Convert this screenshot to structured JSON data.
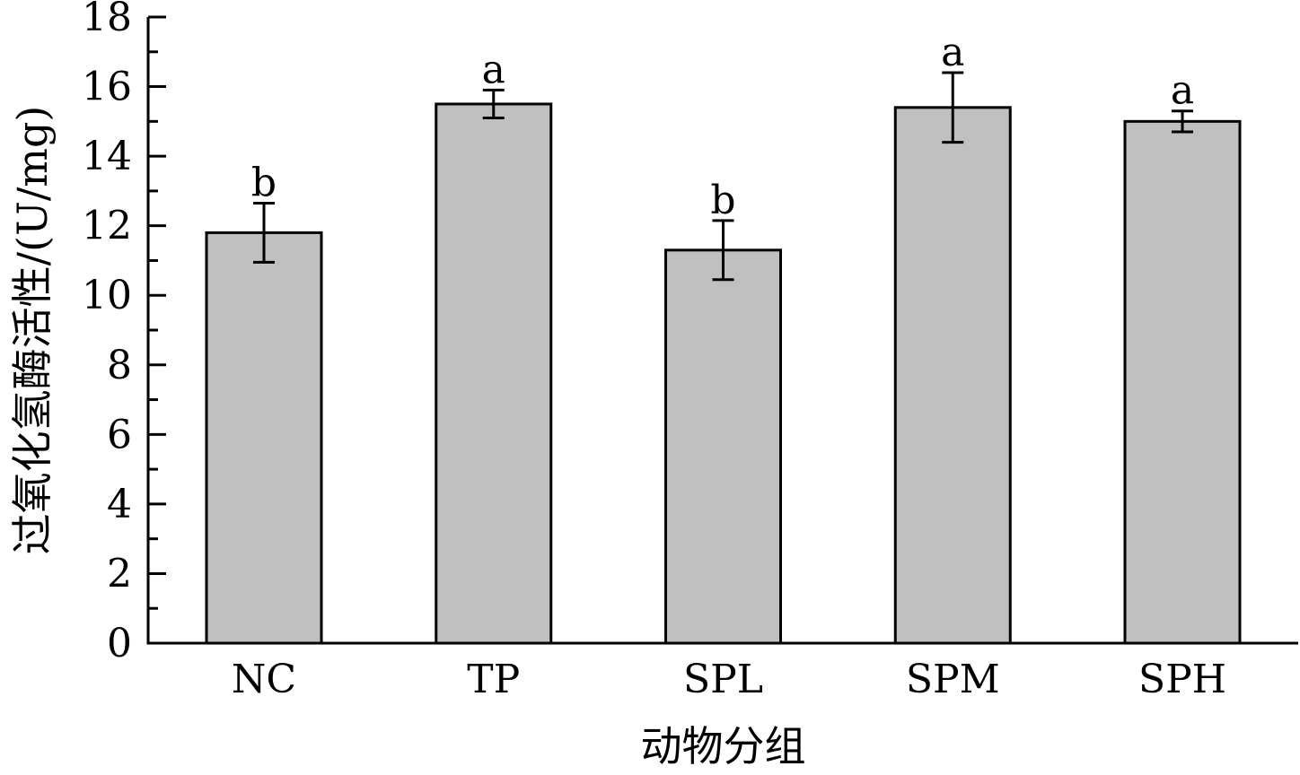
{
  "chart_data": {
    "type": "bar",
    "title": "",
    "xlabel": "动物分组",
    "ylabel": "过氧化氢酶活性/(U/mg)",
    "ylim": [
      0,
      18
    ],
    "yticks": [
      "0",
      "2",
      "4",
      "6",
      "8",
      "10",
      "12",
      "14",
      "16",
      "18"
    ],
    "categories": [
      "NC",
      "TP",
      "SPL",
      "SPM",
      "SPH"
    ],
    "values": [
      11.8,
      15.5,
      11.3,
      15.4,
      15.0
    ],
    "errors": [
      0.85,
      0.4,
      0.85,
      1.0,
      0.3
    ],
    "significance": [
      "b",
      "a",
      "b",
      "a",
      "a"
    ],
    "bar_color": "#c0c0c0",
    "grid": false,
    "legend": "none"
  }
}
